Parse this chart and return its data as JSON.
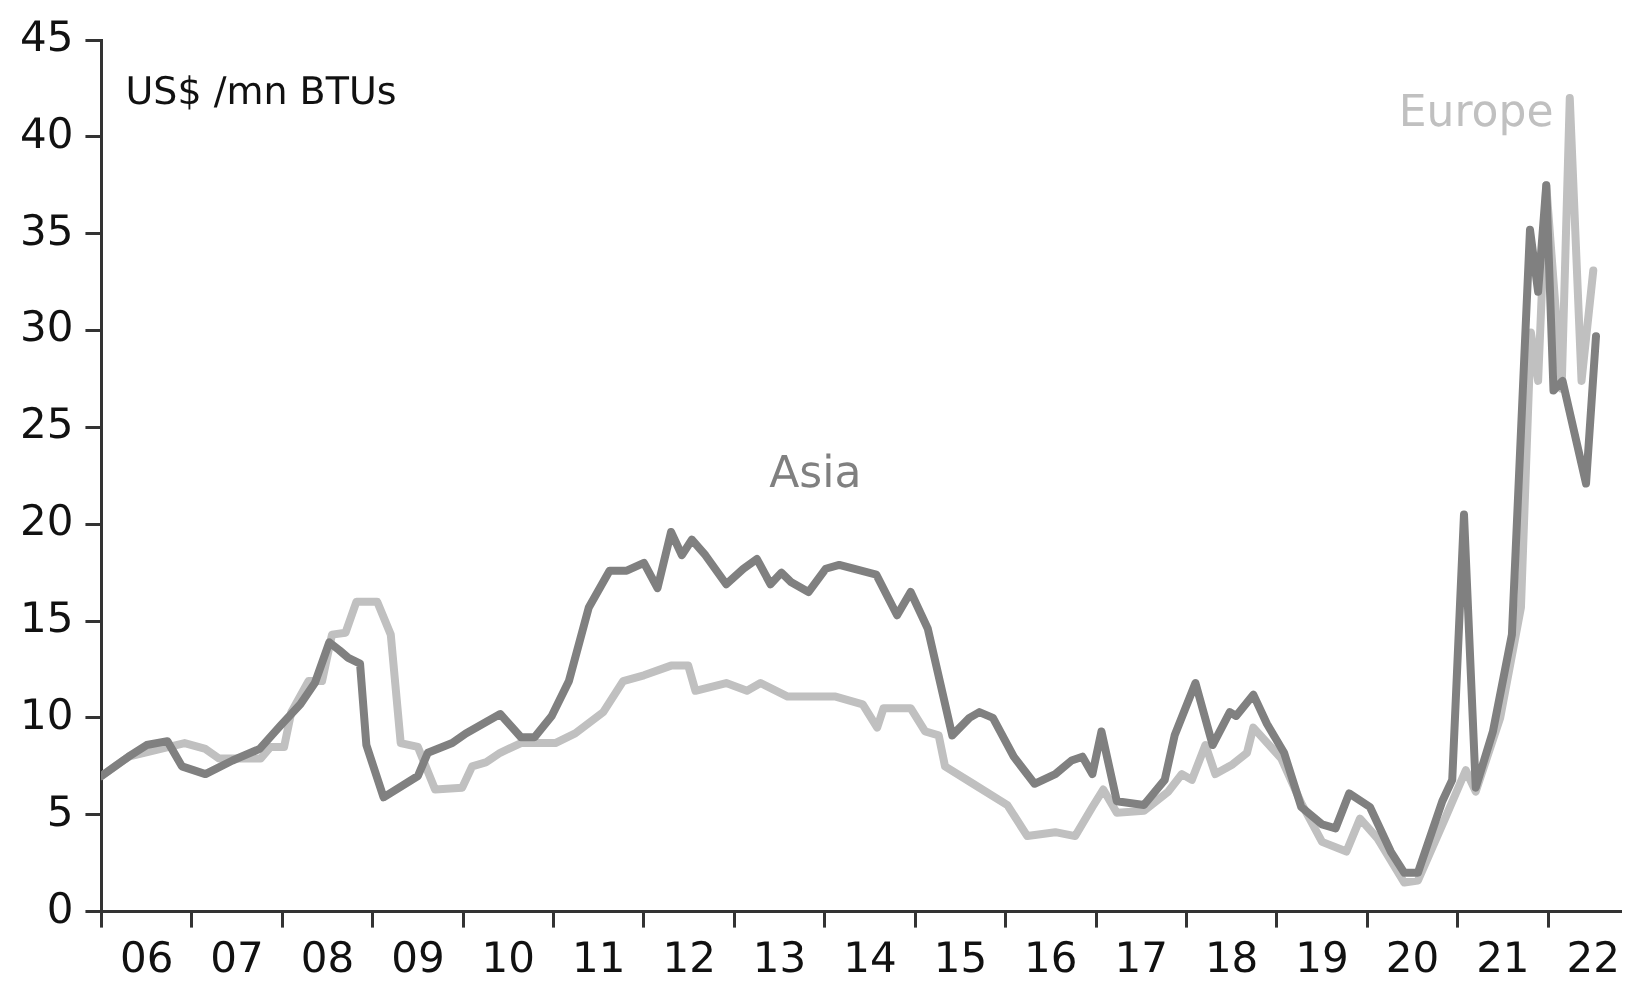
{
  "chart_data": {
    "type": "line",
    "ylabel": "US$ /mn BTUs",
    "xlim": [
      2005.5,
      2022.3
    ],
    "xticks": [
      {
        "value": 2005.5,
        "label": null
      },
      {
        "value": 2006,
        "label": "06"
      },
      {
        "value": 2006.5,
        "label": null
      },
      {
        "value": 2007,
        "label": "07"
      },
      {
        "value": 2007.5,
        "label": null
      },
      {
        "value": 2008,
        "label": "08"
      },
      {
        "value": 2008.5,
        "label": null
      },
      {
        "value": 2009,
        "label": "09"
      },
      {
        "value": 2009.5,
        "label": null
      },
      {
        "value": 2010,
        "label": "10"
      },
      {
        "value": 2010.5,
        "label": null
      },
      {
        "value": 2011,
        "label": "11"
      },
      {
        "value": 2011.5,
        "label": null
      },
      {
        "value": 2012,
        "label": "12"
      },
      {
        "value": 2012.5,
        "label": null
      },
      {
        "value": 2013,
        "label": "13"
      },
      {
        "value": 2013.5,
        "label": null
      },
      {
        "value": 2014,
        "label": "14"
      },
      {
        "value": 2014.5,
        "label": null
      },
      {
        "value": 2015,
        "label": "15"
      },
      {
        "value": 2015.5,
        "label": null
      },
      {
        "value": 2016,
        "label": "16"
      },
      {
        "value": 2016.5,
        "label": null
      },
      {
        "value": 2017,
        "label": "17"
      },
      {
        "value": 2017.5,
        "label": null
      },
      {
        "value": 2018,
        "label": "18"
      },
      {
        "value": 2018.5,
        "label": null
      },
      {
        "value": 2019,
        "label": "19"
      },
      {
        "value": 2019.5,
        "label": null
      },
      {
        "value": 2020,
        "label": "20"
      },
      {
        "value": 2020.5,
        "label": null
      },
      {
        "value": 2021,
        "label": "21"
      },
      {
        "value": 2021.5,
        "label": null
      },
      {
        "value": 2022,
        "label": "22"
      }
    ],
    "ylim": [
      0,
      45
    ],
    "yticks": [
      0,
      5,
      10,
      15,
      20,
      25,
      30,
      35,
      40,
      45
    ],
    "grid": false,
    "legend": false,
    "marker": "none",
    "line_style": "solid",
    "series": [
      {
        "name": "Asia",
        "color": "#808080",
        "x": [
          2005.5,
          2005.8,
          2006.0,
          2006.23,
          2006.39,
          2006.65,
          2006.95,
          2007.25,
          2007.48,
          2007.7,
          2007.86,
          2008.02,
          2008.13,
          2008.23,
          2008.36,
          2008.43,
          2008.62,
          2009.0,
          2009.11,
          2009.38,
          2009.53,
          2009.91,
          2010.14,
          2010.29,
          2010.48,
          2010.67,
          2010.89,
          2011.12,
          2011.31,
          2011.5,
          2011.65,
          2011.8,
          2011.92,
          2012.03,
          2012.18,
          2012.41,
          2012.6,
          2012.75,
          2012.9,
          2013.02,
          2013.13,
          2013.32,
          2013.51,
          2013.66,
          2014.07,
          2014.3,
          2014.45,
          2014.64,
          2014.91,
          2015.1,
          2015.21,
          2015.36,
          2015.59,
          2015.82,
          2016.05,
          2016.23,
          2016.35,
          2016.46,
          2016.56,
          2016.73,
          2017.03,
          2017.26,
          2017.37,
          2017.6,
          2017.79,
          2017.98,
          2018.05,
          2018.24,
          2018.39,
          2018.58,
          2018.77,
          2019.0,
          2019.15,
          2019.3,
          2019.53,
          2019.76,
          2019.91,
          2020.06,
          2020.33,
          2020.44,
          2020.57,
          2020.7,
          2020.89,
          2021.1,
          2021.3,
          2021.39,
          2021.48,
          2021.56,
          2021.66,
          2021.92,
          2022.03
        ],
        "values": [
          7.0,
          8.0,
          8.6,
          8.8,
          7.5,
          7.1,
          7.8,
          8.4,
          9.6,
          10.7,
          11.8,
          13.9,
          13.5,
          13.1,
          12.8,
          8.6,
          5.9,
          7.0,
          8.2,
          8.7,
          9.2,
          10.2,
          9.0,
          9.0,
          10.1,
          11.9,
          15.7,
          17.6,
          17.6,
          18.0,
          16.7,
          19.6,
          18.4,
          19.2,
          18.4,
          16.9,
          17.7,
          18.2,
          16.9,
          17.5,
          17.0,
          16.5,
          17.7,
          17.9,
          17.4,
          15.3,
          16.5,
          14.6,
          9.1,
          10.0,
          10.3,
          10.0,
          8.0,
          6.6,
          7.1,
          7.8,
          8.0,
          7.1,
          9.3,
          5.7,
          5.5,
          6.8,
          9.1,
          11.8,
          8.6,
          10.3,
          10.1,
          11.2,
          9.7,
          8.2,
          5.4,
          4.5,
          4.3,
          6.1,
          5.4,
          3.1,
          2.0,
          2.0,
          5.7,
          6.8,
          20.5,
          6.4,
          9.3,
          14.3,
          35.2,
          32.0,
          37.5,
          26.9,
          27.4,
          22.1,
          29.7
        ]
      },
      {
        "name": "Europe",
        "color": "#c0c0c0",
        "x": [
          2005.5,
          2005.8,
          2006.42,
          2006.65,
          2006.8,
          2007.26,
          2007.37,
          2007.52,
          2007.6,
          2007.79,
          2007.94,
          2008.05,
          2008.2,
          2008.32,
          2008.55,
          2008.7,
          2008.81,
          2009.0,
          2009.19,
          2009.49,
          2009.6,
          2009.75,
          2009.91,
          2010.14,
          2010.52,
          2010.74,
          2011.05,
          2011.27,
          2011.5,
          2011.8,
          2011.99,
          2012.07,
          2012.41,
          2012.64,
          2012.79,
          2013.09,
          2013.62,
          2013.92,
          2014.08,
          2014.15,
          2014.45,
          2014.61,
          2014.76,
          2014.83,
          2015.14,
          2015.52,
          2015.74,
          2016.05,
          2016.27,
          2016.46,
          2016.58,
          2016.73,
          2017.03,
          2017.3,
          2017.45,
          2017.56,
          2017.71,
          2017.82,
          2018.01,
          2018.17,
          2018.24,
          2018.55,
          2018.77,
          2019.0,
          2019.27,
          2019.42,
          2019.61,
          2019.91,
          2020.06,
          2020.36,
          2020.59,
          2020.7,
          2020.97,
          2021.2,
          2021.31,
          2021.39,
          2021.48,
          2021.65,
          2021.74,
          2021.87,
          2022.0
        ],
        "values": [
          7.0,
          8.0,
          8.7,
          8.4,
          7.9,
          7.9,
          8.5,
          8.5,
          10.3,
          11.9,
          11.9,
          14.3,
          14.4,
          16.0,
          16.0,
          14.3,
          8.7,
          8.5,
          6.3,
          6.4,
          7.5,
          7.7,
          8.2,
          8.7,
          8.7,
          9.2,
          10.3,
          11.9,
          12.2,
          12.7,
          12.7,
          11.4,
          11.8,
          11.4,
          11.8,
          11.1,
          11.1,
          10.7,
          9.5,
          10.5,
          10.5,
          9.3,
          9.1,
          7.5,
          6.6,
          5.5,
          3.9,
          4.1,
          3.9,
          5.4,
          6.3,
          5.1,
          5.2,
          6.2,
          7.1,
          6.8,
          8.6,
          7.1,
          7.6,
          8.2,
          9.5,
          7.9,
          5.6,
          3.6,
          3.1,
          4.8,
          3.8,
          1.5,
          1.6,
          4.8,
          7.3,
          6.2,
          10.0,
          15.7,
          29.9,
          27.4,
          37.5,
          27.0,
          42.0,
          27.4,
          33.1
        ]
      }
    ]
  }
}
